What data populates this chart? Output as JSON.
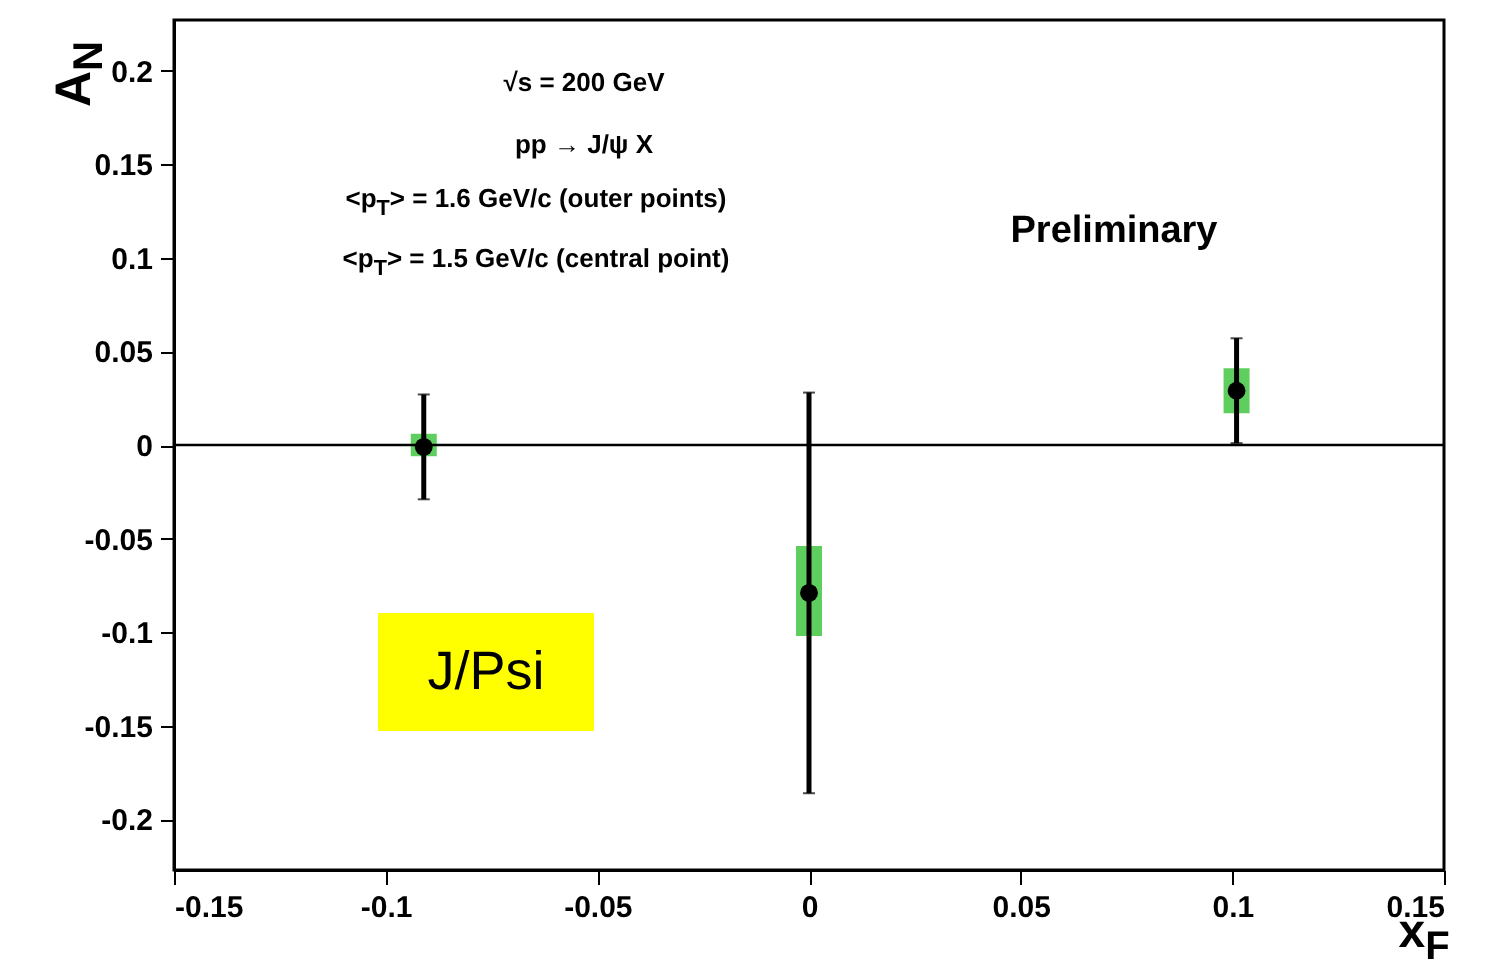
{
  "chart_data": {
    "type": "scatter",
    "xlabel": "x$_{F}$",
    "ylabel": "A$_{N}$",
    "annotations": [
      "√s = 200 GeV",
      "pp → J/ψ X",
      "<p$_{T}$> = 1.6 GeV/c (outer points)",
      "<p$_{T}$> = 1.5 GeV/c (central point)",
      "Preliminary",
      "J/Psi"
    ],
    "xlim": [
      -0.15,
      0.15
    ],
    "xticks": [
      -0.15,
      -0.1,
      -0.05,
      0,
      0.05,
      0.1,
      0.15
    ],
    "ylim": [
      -0.227,
      0.227
    ],
    "yticks": [
      -0.2,
      -0.15,
      -0.1,
      -0.05,
      0,
      0.05,
      0.1,
      0.15,
      0.2
    ],
    "grid": false,
    "marker": "circle",
    "ref_lines": [
      {
        "axis": "y",
        "value": 0,
        "color": "#000000"
      }
    ],
    "series": [
      {
        "type": "bar",
        "color": "#5ecf5e",
        "x": [
          -0.091,
          0,
          0.101
        ],
        "base": [
          -0.006,
          -0.102,
          0.017
        ],
        "values": [
          0.012,
          0.048,
          0.024
        ]
      },
      {
        "color": "#000000",
        "x": [
          -0.091,
          0,
          0.101
        ],
        "values": [
          -0.001,
          -0.079,
          0.029
        ],
        "errors": [
          0.028,
          0.107,
          0.028
        ]
      }
    ]
  }
}
